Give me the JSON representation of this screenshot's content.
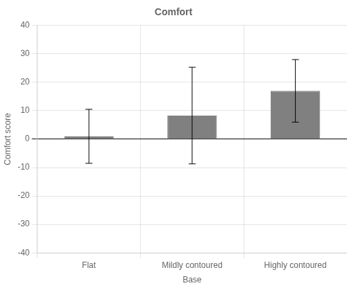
{
  "chart_data": {
    "type": "bar",
    "title": "Comfort",
    "xlabel": "Base",
    "ylabel": "Comfort score",
    "categories": [
      "Flat",
      "Mildly contoured",
      "Highly contoured"
    ],
    "values": [
      1.0,
      8.3,
      17.0
    ],
    "errors": [
      9.5,
      17.0,
      11.0
    ],
    "color": "#808080",
    "ylim": [
      -40,
      40
    ],
    "yticks": [
      -40,
      -30,
      -20,
      -10,
      0,
      10,
      20,
      30,
      40
    ],
    "grid": true
  }
}
